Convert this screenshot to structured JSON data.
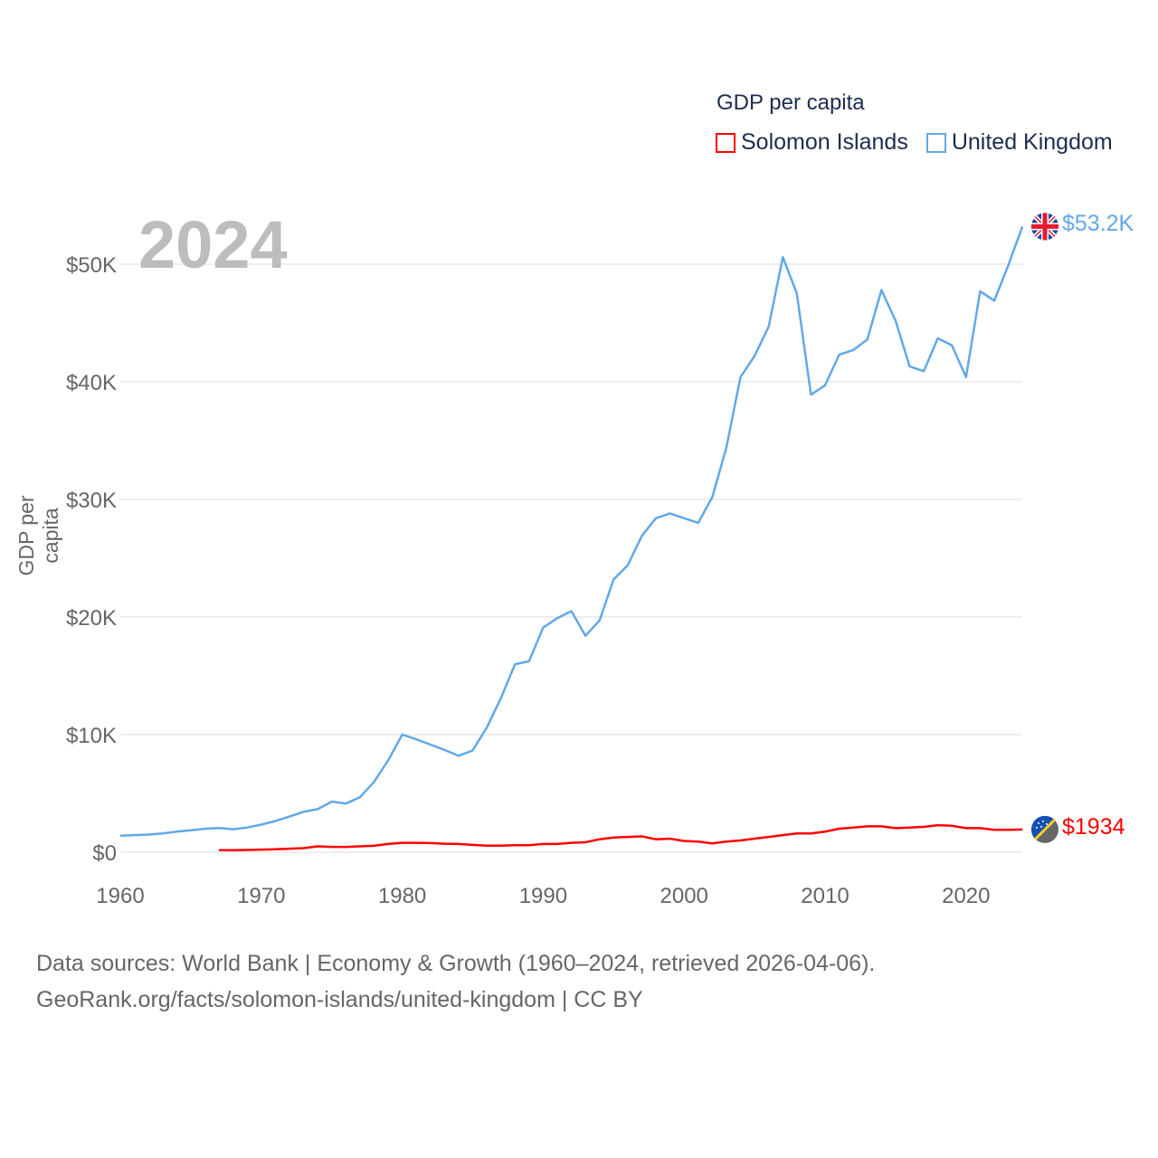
{
  "legend": {
    "title": "GDP per capita",
    "items": [
      {
        "label": "Solomon Islands",
        "color": "#ff0000"
      },
      {
        "label": "United Kingdom",
        "color": "#62a8e9"
      }
    ]
  },
  "year_watermark": "2024",
  "end_labels": {
    "uk": "$53.2K",
    "solomon": "$1934"
  },
  "flags": {
    "uk": "uk-flag-icon",
    "solomon": "solomon-islands-flag-icon"
  },
  "source_line1": "Data sources: World Bank | Economy & Growth (1960–2024, retrieved 2026-04-06).",
  "source_line2": "GeoRank.org/facts/solomon-islands/united-kingdom | CC BY",
  "chart_data": {
    "type": "line",
    "title": "GDP per capita",
    "ylabel": "GDP per capita",
    "xlabel": "",
    "xlim": [
      1960,
      2024
    ],
    "ylim": [
      0,
      53200
    ],
    "xticks": [
      1960,
      1970,
      1980,
      1990,
      2000,
      2010,
      2020
    ],
    "xtick_labels": [
      "1960",
      "1970",
      "1980",
      "1990",
      "2000",
      "2010",
      "2020"
    ],
    "yticks": [
      0,
      10000,
      20000,
      30000,
      40000,
      50000
    ],
    "ytick_labels": [
      "$0",
      "$10K",
      "$20K",
      "$30K",
      "$40K",
      "$50K"
    ],
    "grid": true,
    "legend_position": "top-right",
    "series": [
      {
        "name": "United Kingdom",
        "color": "#62a8e9",
        "start": 1960,
        "values": [
          1400,
          1450,
          1500,
          1600,
          1750,
          1870,
          1990,
          2060,
          1950,
          2100,
          2350,
          2650,
          3030,
          3430,
          3660,
          4300,
          4140,
          4680,
          5980,
          7800,
          10000,
          9600,
          9150,
          8700,
          8200,
          8650,
          10600,
          13100,
          15980,
          16240,
          19100,
          19900,
          20500,
          18400,
          19700,
          23200,
          24400,
          26900,
          28400,
          28800,
          28400,
          28000,
          30200,
          34400,
          40400,
          42200,
          44700,
          50600,
          47500,
          38900,
          39700,
          42300,
          42700,
          43600,
          47800,
          45200,
          41300,
          40900,
          43700,
          43100,
          40400,
          47700,
          46900,
          49900,
          53200
        ]
      },
      {
        "name": "Solomon Islands",
        "color": "#ff0000",
        "start": 1967,
        "values": [
          180,
          180,
          190,
          220,
          250,
          300,
          350,
          500,
          450,
          450,
          500,
          550,
          700,
          800,
          800,
          780,
          720,
          700,
          620,
          560,
          560,
          600,
          600,
          700,
          700,
          800,
          850,
          1100,
          1250,
          1300,
          1350,
          1100,
          1150,
          950,
          900,
          750,
          900,
          1000,
          1150,
          1300,
          1450,
          1600,
          1600,
          1750,
          2000,
          2100,
          2200,
          2200,
          2050,
          2100,
          2150,
          2300,
          2250,
          2050,
          2050,
          1900,
          1900,
          1934
        ]
      }
    ]
  }
}
